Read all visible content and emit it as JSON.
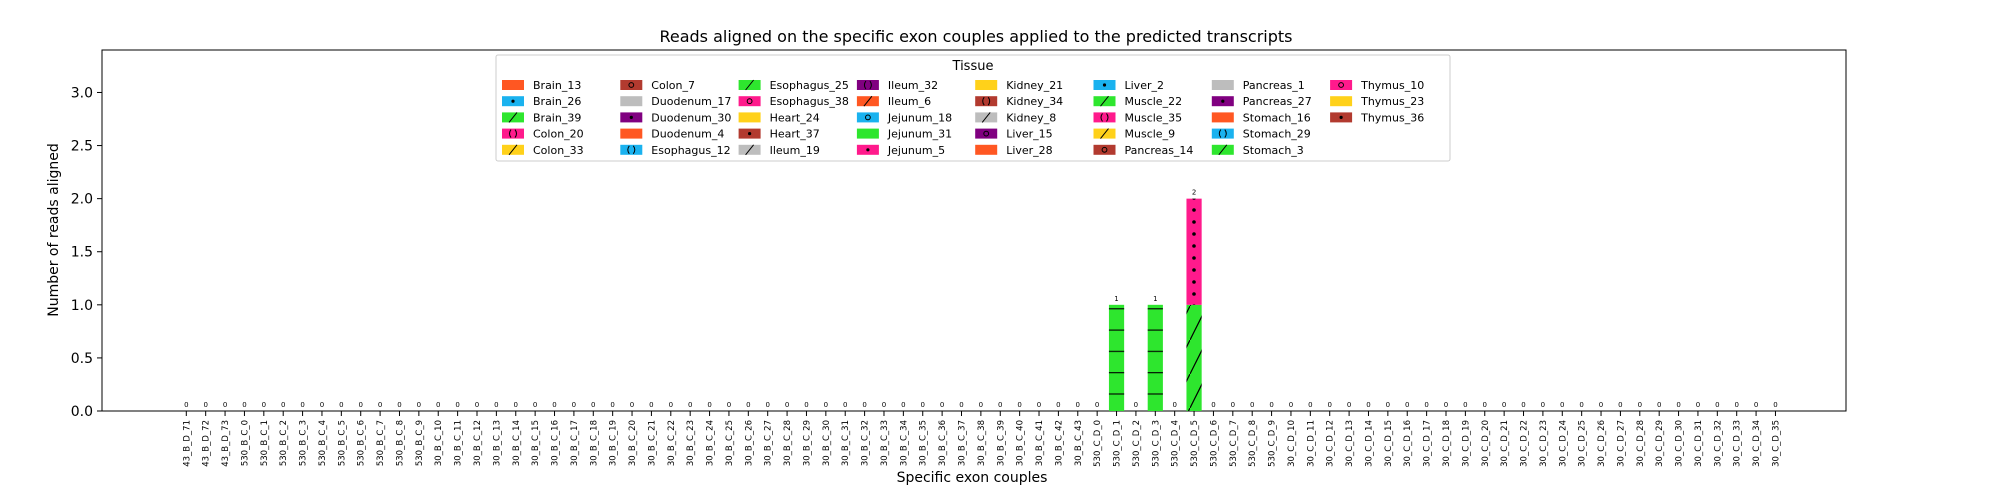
{
  "chart_data": {
    "type": "bar",
    "stacked": true,
    "title": "Reads aligned on the specific exon couples applied to the predicted transcripts",
    "xlabel": "Specific exon couples",
    "ylabel": "Number of reads aligned",
    "ylim": [
      0,
      3.4
    ],
    "yticks": [
      "0.0",
      "0.5",
      "1.0",
      "1.5",
      "2.0",
      "2.5",
      "3.0"
    ],
    "grid": false,
    "legend_title": "Tissue",
    "legend_position": "top-center",
    "categories": [
      "43_B_D_71",
      "43_B_D_72",
      "43_B_D_73",
      "530_B_C_0",
      "530_B_C_1",
      "530_B_C_2",
      "530_B_C_3",
      "530_B_C_4",
      "530_B_C_5",
      "530_B_C_6",
      "530_B_C_7",
      "530_B_C_8",
      "530_B_C_9",
      "30_B_C_10",
      "30_B_C_11",
      "30_B_C_12",
      "30_B_C_13",
      "30_B_C_14",
      "30_B_C_15",
      "30_B_C_16",
      "30_B_C_17",
      "30_B_C_18",
      "30_B_C_19",
      "30_B_C_20",
      "30_B_C_21",
      "30_B_C_22",
      "30_B_C_23",
      "30_B_C_24",
      "30_B_C_25",
      "30_B_C_26",
      "30_B_C_27",
      "30_B_C_28",
      "30_B_C_29",
      "30_B_C_30",
      "30_B_C_31",
      "30_B_C_32",
      "30_B_C_33",
      "30_B_C_34",
      "30_B_C_35",
      "30_B_C_36",
      "30_B_C_37",
      "30_B_C_38",
      "30_B_C_39",
      "30_B_C_40",
      "30_B_C_41",
      "30_B_C_42",
      "30_B_C_43",
      "530_C_D_0",
      "530_C_D_1",
      "530_C_D_2",
      "530_C_D_3",
      "530_C_D_4",
      "530_C_D_5",
      "530_C_D_6",
      "530_C_D_7",
      "530_C_D_8",
      "530_C_D_9",
      "30_C_D_10",
      "30_C_D_11",
      "30_C_D_12",
      "30_C_D_13",
      "30_C_D_14",
      "30_C_D_15",
      "30_C_D_16",
      "30_C_D_17",
      "30_C_D_18",
      "30_C_D_19",
      "30_C_D_20",
      "30_C_D_21",
      "30_C_D_22",
      "30_C_D_23",
      "30_C_D_24",
      "30_C_D_25",
      "30_C_D_26",
      "30_C_D_27",
      "30_C_D_28",
      "30_C_D_29",
      "30_C_D_30",
      "30_C_D_31",
      "30_C_D_32",
      "30_C_D_33",
      "30_C_D_34",
      "30_C_D_35"
    ],
    "totals": [
      0,
      0,
      0,
      0,
      0,
      0,
      0,
      0,
      0,
      0,
      0,
      0,
      0,
      0,
      0,
      0,
      0,
      0,
      0,
      0,
      0,
      0,
      0,
      0,
      0,
      0,
      0,
      0,
      0,
      0,
      0,
      0,
      0,
      0,
      0,
      0,
      0,
      0,
      0,
      0,
      0,
      0,
      0,
      0,
      0,
      0,
      0,
      0,
      1,
      0,
      1,
      0,
      2,
      0,
      0,
      0,
      0,
      0,
      0,
      0,
      0,
      0,
      0,
      0,
      0,
      0,
      0,
      0,
      0,
      0,
      0,
      0,
      0,
      0,
      0,
      0,
      0,
      0,
      0,
      0,
      0,
      0,
      0
    ],
    "total_labels": [
      "0",
      "0",
      "0",
      "0",
      "0",
      "0",
      "0",
      "0",
      "0",
      "0",
      "0",
      "0",
      "0",
      "0",
      "0",
      "0",
      "0",
      "0",
      "0",
      "0",
      "0",
      "0",
      "0",
      "0",
      "0",
      "0",
      "0",
      "0",
      "0",
      "0",
      "0",
      "0",
      "0",
      "0",
      "0",
      "0",
      "0",
      "0",
      "0",
      "0",
      "0",
      "0",
      "0",
      "0",
      "0",
      "0",
      "0",
      "0",
      "1",
      "0",
      "1",
      "0",
      "2",
      "0",
      "0",
      "0",
      "0",
      "0",
      "0",
      "0",
      "0",
      "0",
      "0",
      "0",
      "0",
      "0",
      "0",
      "0",
      "0",
      "0",
      "0",
      "0",
      "0",
      "0",
      "0",
      "0",
      "0",
      "0",
      "0",
      "0",
      "0",
      "0",
      "0"
    ],
    "segments": [
      {
        "category": "530_C_D_1",
        "series": "Stomach_3",
        "value": 1
      },
      {
        "category": "530_C_D_3",
        "series": "Stomach_3",
        "value": 1
      },
      {
        "category": "530_C_D_5",
        "series": "Stomach_3",
        "value": 1
      },
      {
        "category": "530_C_D_5",
        "series": "Thymus_10",
        "value": 1
      }
    ],
    "legend": [
      {
        "name": "Brain_13",
        "color": "#ff5722",
        "hatch": "none"
      },
      {
        "name": "Brain_26",
        "color": "#1ab2ef",
        "hatch": "dots"
      },
      {
        "name": "Brain_39",
        "color": "#2ee62e",
        "hatch": "slash"
      },
      {
        "name": "Colon_20",
        "color": "#ff1a8c",
        "hatch": "rings"
      },
      {
        "name": "Colon_33",
        "color": "#ffd11a",
        "hatch": "slash"
      },
      {
        "name": "Colon_7",
        "color": "#b23a2f",
        "hatch": "circles"
      },
      {
        "name": "Duodenum_17",
        "color": "#bdbdbd",
        "hatch": "none"
      },
      {
        "name": "Duodenum_30",
        "color": "#800080",
        "hatch": "dots"
      },
      {
        "name": "Duodenum_4",
        "color": "#ff5722",
        "hatch": "none"
      },
      {
        "name": "Esophagus_12",
        "color": "#1ab2ef",
        "hatch": "rings"
      },
      {
        "name": "Esophagus_25",
        "color": "#2ee62e",
        "hatch": "slash"
      },
      {
        "name": "Esophagus_38",
        "color": "#ff1a8c",
        "hatch": "circles"
      },
      {
        "name": "Heart_24",
        "color": "#ffd11a",
        "hatch": "none"
      },
      {
        "name": "Heart_37",
        "color": "#b23a2f",
        "hatch": "dots"
      },
      {
        "name": "Ileum_19",
        "color": "#bdbdbd",
        "hatch": "slash"
      },
      {
        "name": "Ileum_32",
        "color": "#800080",
        "hatch": "rings"
      },
      {
        "name": "Ileum_6",
        "color": "#ff5722",
        "hatch": "slash"
      },
      {
        "name": "Jejunum_18",
        "color": "#1ab2ef",
        "hatch": "circles"
      },
      {
        "name": "Jejunum_31",
        "color": "#2ee62e",
        "hatch": "none"
      },
      {
        "name": "Jejunum_5",
        "color": "#ff1a8c",
        "hatch": "dots"
      },
      {
        "name": "Kidney_21",
        "color": "#ffd11a",
        "hatch": "none"
      },
      {
        "name": "Kidney_34",
        "color": "#b23a2f",
        "hatch": "rings"
      },
      {
        "name": "Kidney_8",
        "color": "#bdbdbd",
        "hatch": "slash"
      },
      {
        "name": "Liver_15",
        "color": "#800080",
        "hatch": "circles"
      },
      {
        "name": "Liver_28",
        "color": "#ff5722",
        "hatch": "none"
      },
      {
        "name": "Liver_2",
        "color": "#1ab2ef",
        "hatch": "dots"
      },
      {
        "name": "Muscle_22",
        "color": "#2ee62e",
        "hatch": "slash"
      },
      {
        "name": "Muscle_35",
        "color": "#ff1a8c",
        "hatch": "rings"
      },
      {
        "name": "Muscle_9",
        "color": "#ffd11a",
        "hatch": "slash"
      },
      {
        "name": "Pancreas_14",
        "color": "#b23a2f",
        "hatch": "circles"
      },
      {
        "name": "Pancreas_1",
        "color": "#bdbdbd",
        "hatch": "none"
      },
      {
        "name": "Pancreas_27",
        "color": "#800080",
        "hatch": "dots"
      },
      {
        "name": "Stomach_16",
        "color": "#ff5722",
        "hatch": "none"
      },
      {
        "name": "Stomach_29",
        "color": "#1ab2ef",
        "hatch": "rings"
      },
      {
        "name": "Stomach_3",
        "color": "#2ee62e",
        "hatch": "slash"
      },
      {
        "name": "Thymus_10",
        "color": "#ff1a8c",
        "hatch": "circles"
      },
      {
        "name": "Thymus_23",
        "color": "#ffd11a",
        "hatch": "none"
      },
      {
        "name": "Thymus_36",
        "color": "#b23a2f",
        "hatch": "dots"
      }
    ]
  }
}
